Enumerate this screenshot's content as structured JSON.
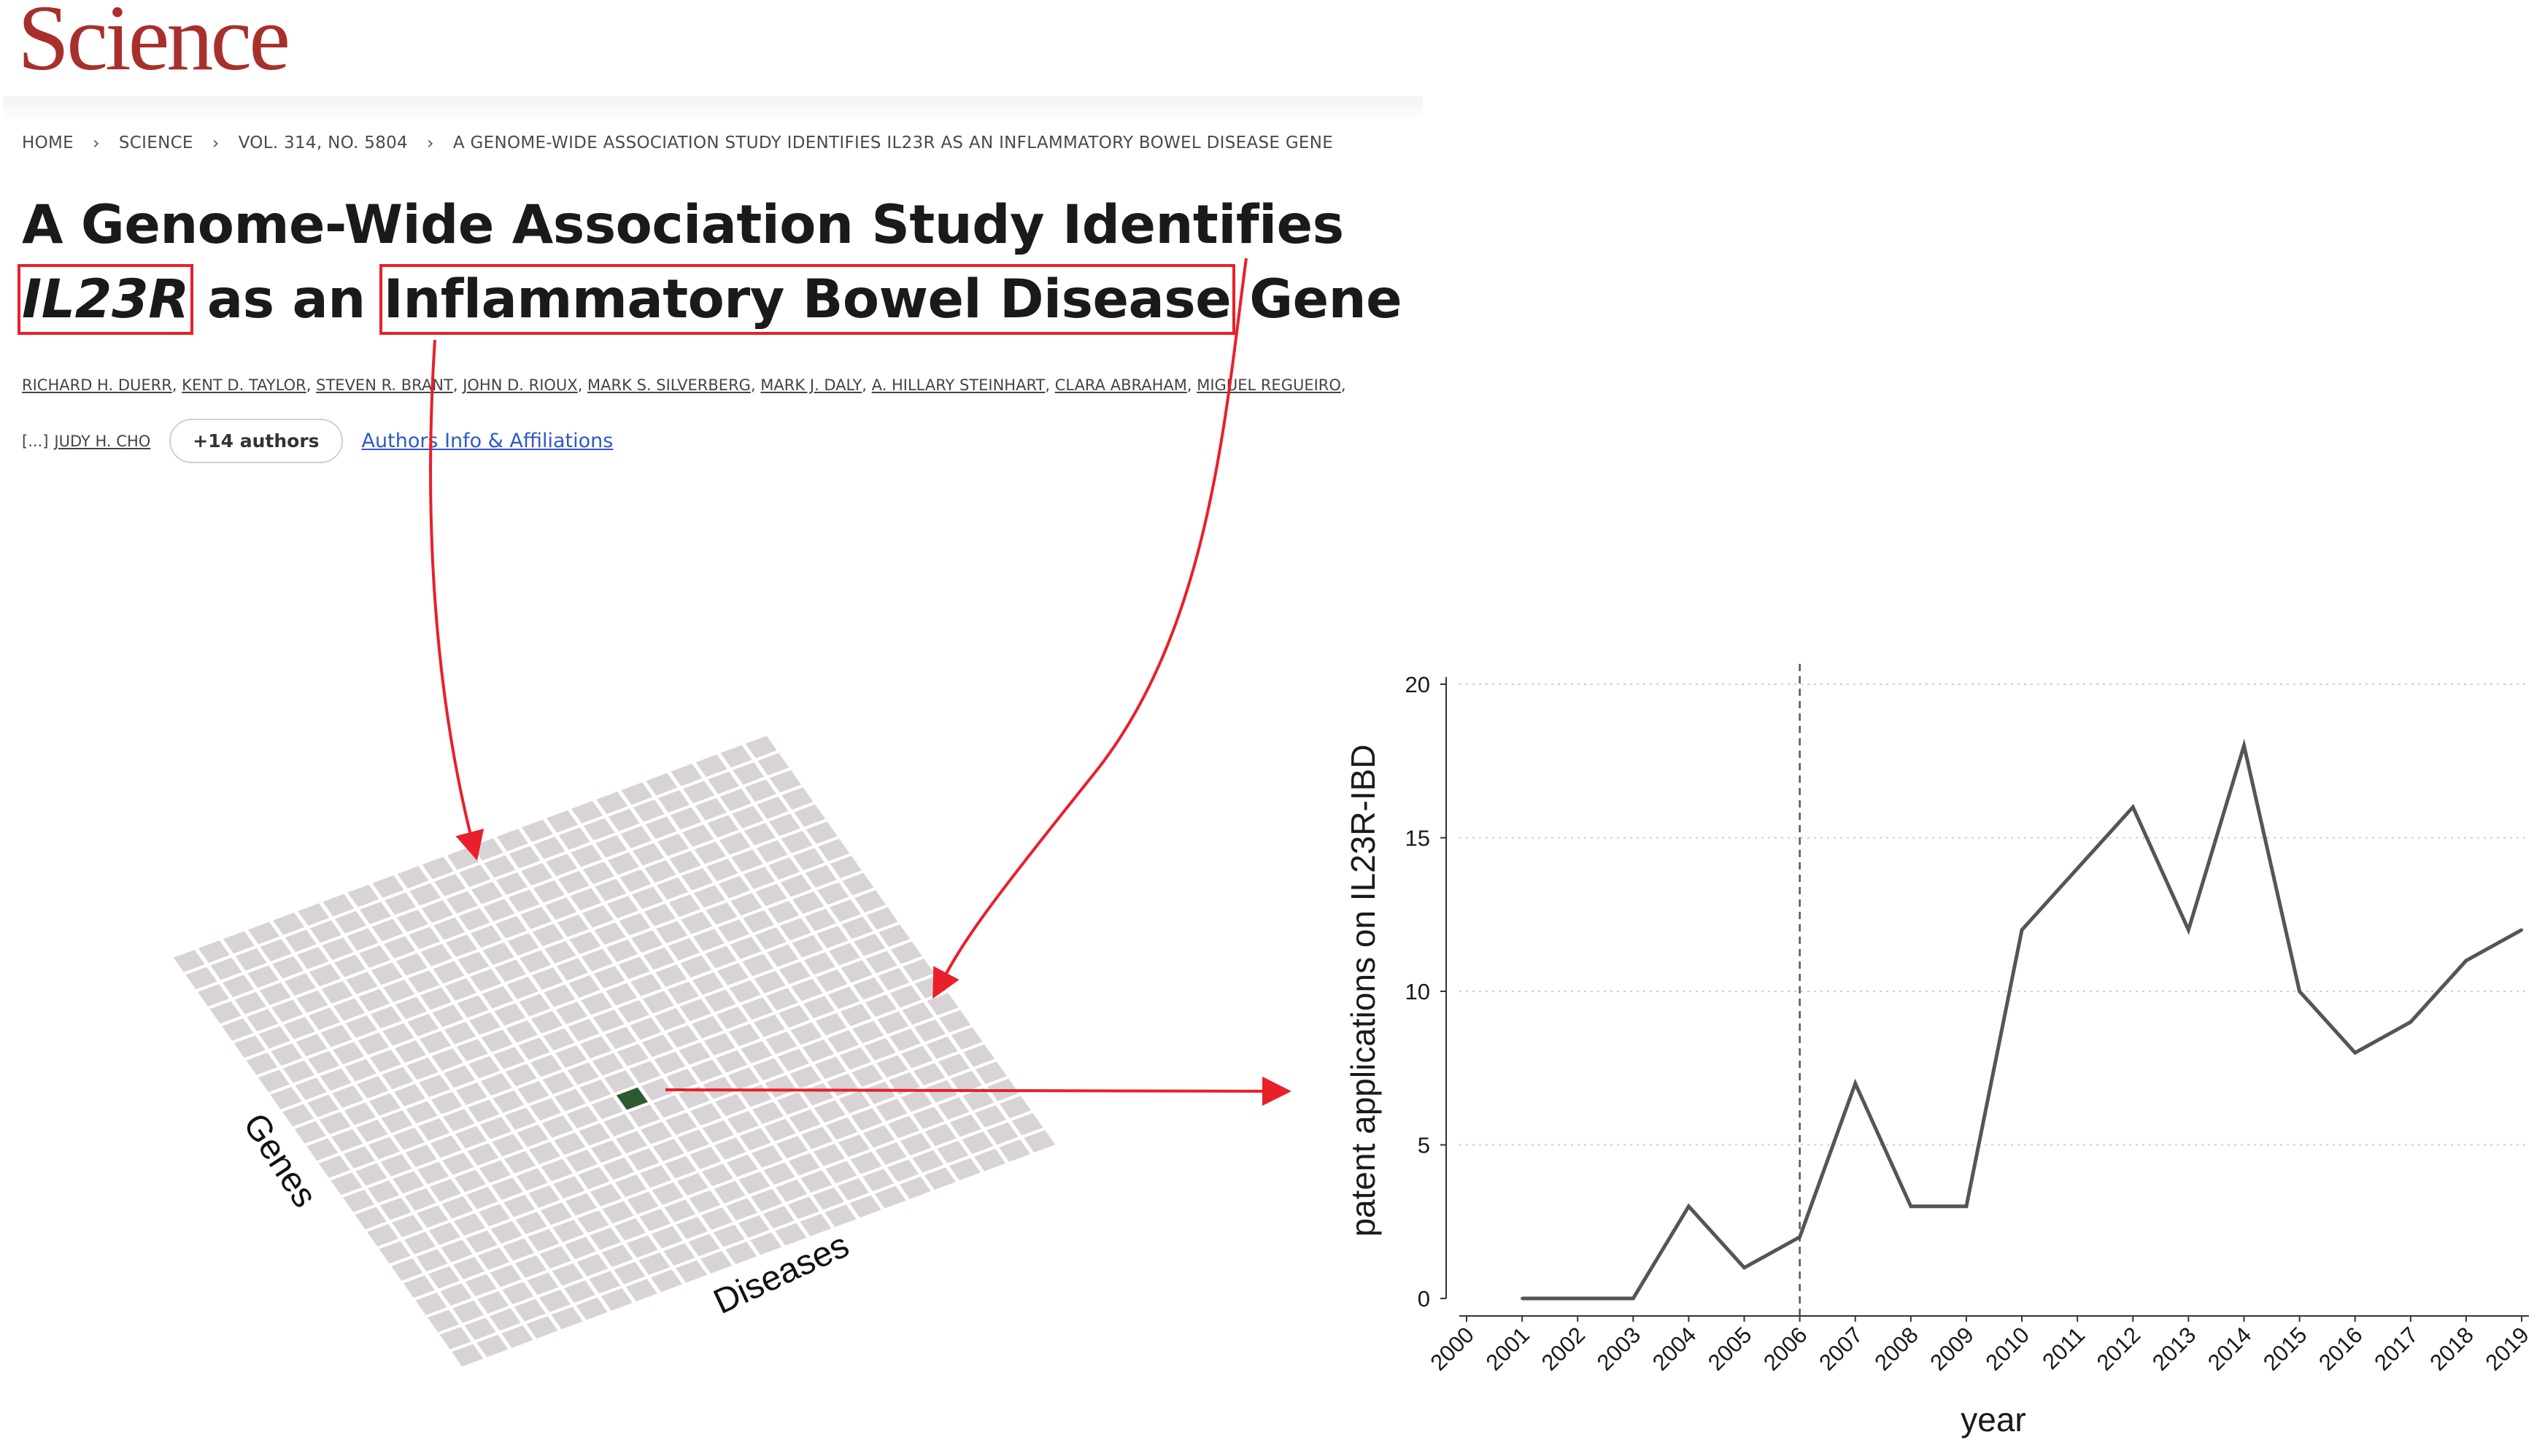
{
  "header": {
    "logo": "Science"
  },
  "breadcrumb": [
    "HOME",
    "SCIENCE",
    "VOL. 314, NO. 5804",
    "A GENOME-WIDE ASSOCIATION STUDY IDENTIFIES IL23R AS AN INFLAMMATORY BOWEL DISEASE GENE"
  ],
  "article": {
    "title_part1": "A Genome-Wide Association Study Identifies ",
    "title_gene": "IL23R",
    "title_part2": " as an ",
    "title_disease": "Inflammatory Bowel Disease",
    "title_part3": " Gene",
    "authors_line1": [
      "RICHARD H. DUERR",
      "KENT D. TAYLOR",
      "STEVEN R. BRANT",
      "JOHN D. RIOUX",
      "MARK S. SILVERBERG",
      "MARK J. DALY",
      "A. HILLARY STEINHART",
      "CLARA ABRAHAM",
      "MIGUEL REGUEIRO"
    ],
    "authors_ellipsis": "[...]",
    "last_author": "JUDY H. CHO",
    "more_authors": "+14 authors",
    "affiliations_link": "Authors Info & Affiliations"
  },
  "grid": {
    "rows": 24,
    "cols": 24,
    "highlight_cell": [
      9,
      11
    ],
    "xlabel": "Diseases",
    "ylabel": "Genes",
    "cell_color": "#d8d3d6",
    "highlight_color": "#2e5a32"
  },
  "colors": {
    "accent": "#e8202a",
    "line": "#555555"
  },
  "chart_data": {
    "type": "line",
    "title": "",
    "xlabel": "year",
    "ylabel": "patent applications on IL23R-IBD",
    "x": [
      "2000",
      "2001",
      "2002",
      "2003",
      "2004",
      "2005",
      "2006",
      "2007",
      "2008",
      "2009",
      "2010",
      "2011",
      "2012",
      "2013",
      "2014",
      "2015",
      "2016",
      "2017",
      "2018",
      "2019"
    ],
    "series": [
      {
        "values": [
          null,
          0,
          0,
          0,
          3,
          1,
          2,
          7,
          3,
          3,
          12,
          14,
          16,
          12,
          18,
          10,
          8,
          9,
          11,
          12
        ]
      }
    ],
    "ylim": [
      0,
      20
    ],
    "yticks": [
      0,
      5,
      10,
      15,
      20
    ],
    "vline_x": "2006",
    "grid": "horizontal dotted",
    "legend": "none"
  }
}
